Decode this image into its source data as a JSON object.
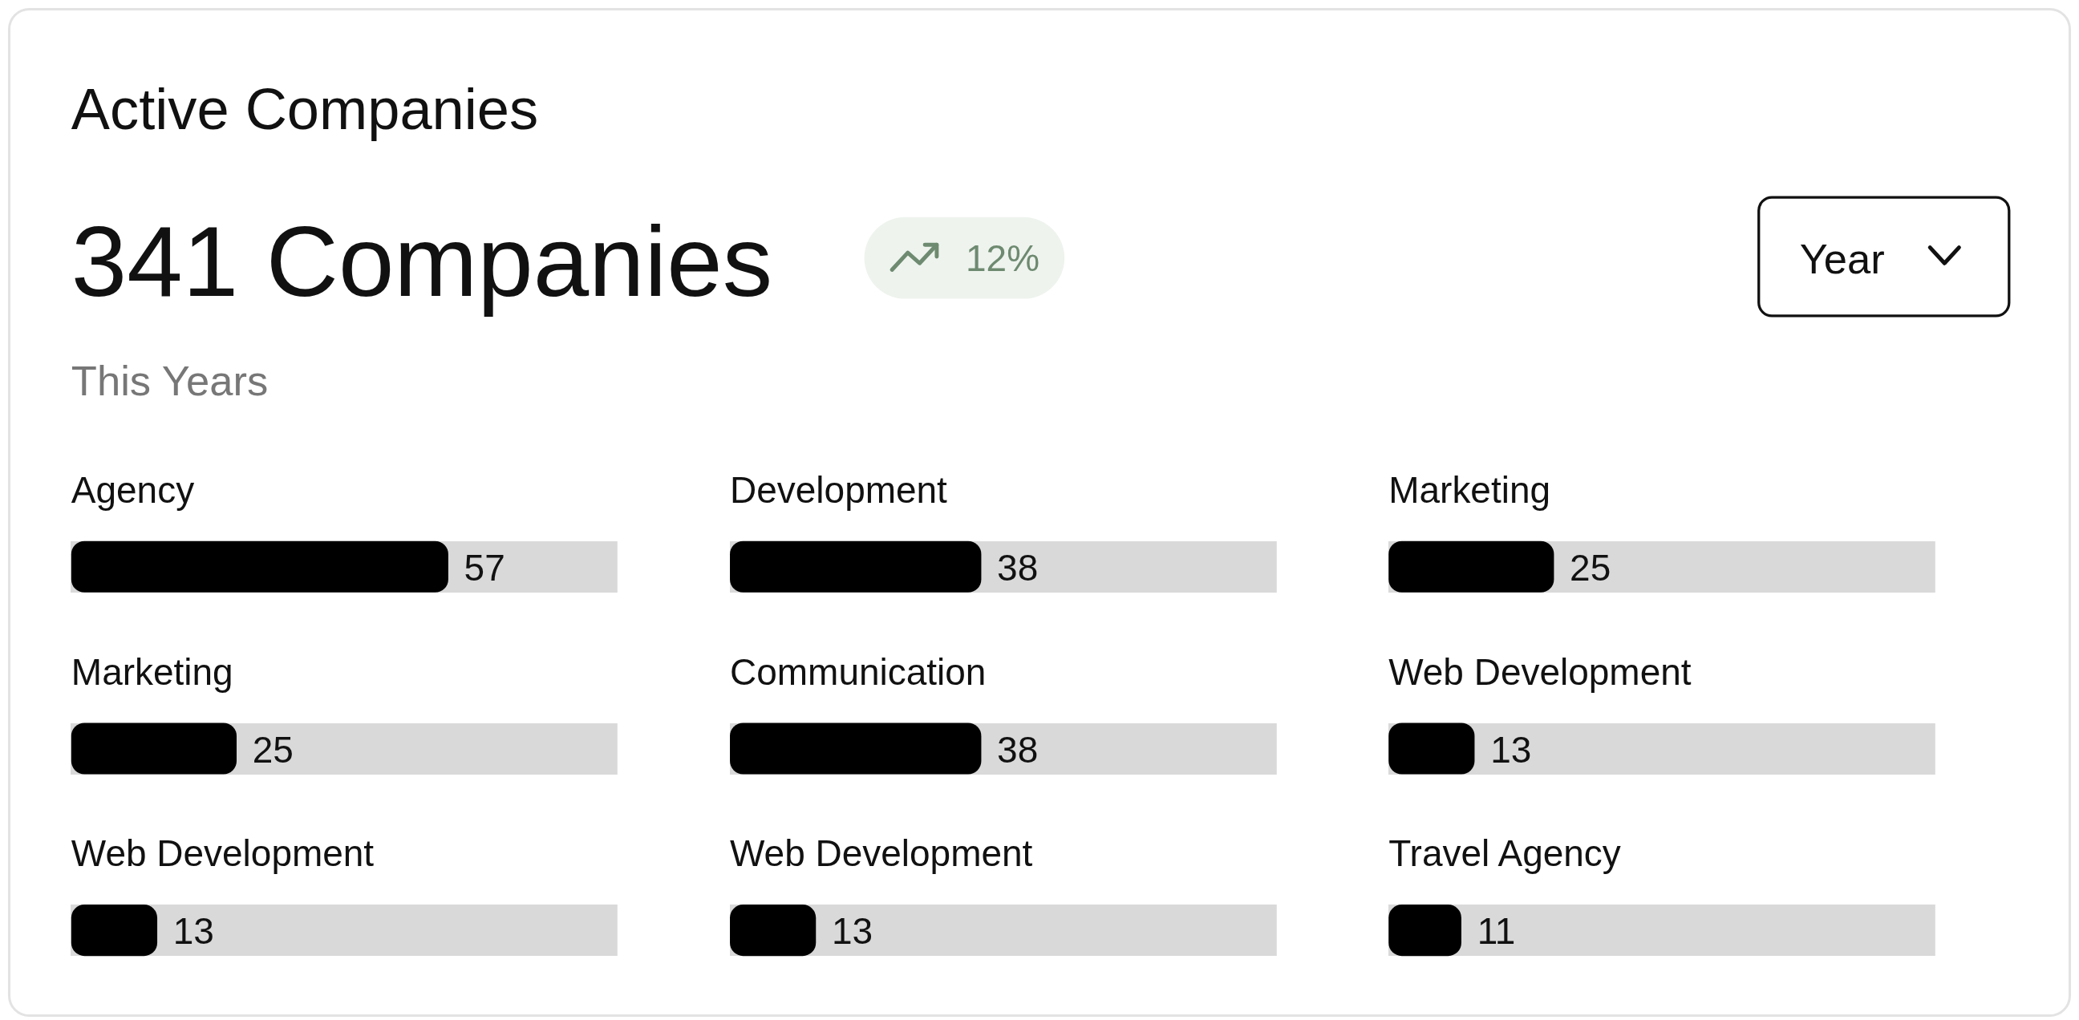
{
  "chart_data": [
    {
      "type": "other",
      "title": "Active Companies",
      "subtitle": "341 Companies",
      "annotations": [
        "12%",
        "This Years",
        "Year"
      ]
    },
    {
      "type": "bar",
      "orientation": "horizontal",
      "categories": [
        "Agency"
      ],
      "values": [
        57
      ],
      "color": "#000000",
      "data_labels": true
    },
    {
      "type": "bar",
      "orientation": "horizontal",
      "categories": [
        "Development"
      ],
      "values": [
        38
      ],
      "color": "#000000",
      "data_labels": true
    },
    {
      "type": "bar",
      "orientation": "horizontal",
      "categories": [
        "Marketing"
      ],
      "values": [
        25
      ],
      "color": "#000000",
      "data_labels": true
    },
    {
      "type": "bar",
      "orientation": "horizontal",
      "categories": [
        "Marketing"
      ],
      "values": [
        25
      ],
      "color": "#000000",
      "data_labels": true
    },
    {
      "type": "bar",
      "orientation": "horizontal",
      "categories": [
        "Communication"
      ],
      "values": [
        38
      ],
      "color": "#000000",
      "data_labels": true
    },
    {
      "type": "bar",
      "orientation": "horizontal",
      "categories": [
        "Web Development"
      ],
      "values": [
        13
      ],
      "color": "#000000",
      "data_labels": true
    },
    {
      "type": "bar",
      "orientation": "horizontal",
      "categories": [
        "Web Development"
      ],
      "values": [
        13
      ],
      "color": "#000000",
      "data_labels": true
    },
    {
      "type": "bar",
      "orientation": "horizontal",
      "categories": [
        "Web Development"
      ],
      "values": [
        13
      ],
      "color": "#000000",
      "data_labels": true
    },
    {
      "type": "bar",
      "orientation": "horizontal",
      "categories": [
        "Travel Agency"
      ],
      "values": [
        11
      ],
      "color": "#000000",
      "data_labels": true
    }
  ]
}
